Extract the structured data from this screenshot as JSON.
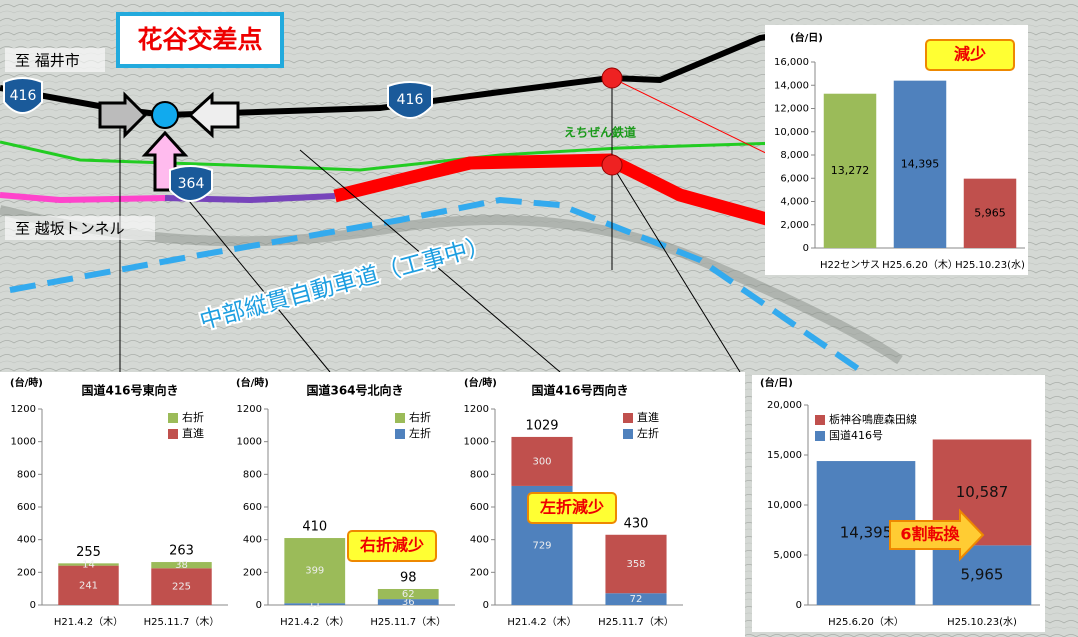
{
  "map": {
    "title": "花谷交差点",
    "to_fukui": "至 福井市",
    "to_tunnel": "至 越坂トンネル",
    "route_416_west": "416",
    "route_416_east": "416",
    "route_364": "364",
    "railway": "えちぜん鉄道",
    "expressway": "中部縦貫自動車道（工事中）"
  },
  "chart_data": [
    {
      "type": "bar",
      "unit": "(台/日)",
      "annotation": "減少",
      "categories": [
        "H22センサス",
        "H25.6.20（木）",
        "H25.10.23(水)"
      ],
      "values": [
        13272,
        14395,
        5965
      ],
      "value_labels": [
        "13,272",
        "14,395",
        "5,965"
      ],
      "colors": [
        "#9bbb59",
        "#4f81bd",
        "#c0504d"
      ],
      "ylim": [
        0,
        16000
      ],
      "yticks": [
        0,
        {
          "value": 2000,
          "label": "2,000"
        },
        {
          "value": 4000,
          "label": "4,000"
        },
        {
          "value": 6000,
          "label": "6,000"
        },
        {
          "value": 8000,
          "label": "8,000"
        },
        {
          "value": 10000,
          "label": "10,000"
        },
        {
          "value": 12000,
          "label": "12,000"
        },
        {
          "value": 14000,
          "label": "14,000"
        },
        {
          "value": 16000,
          "label": "16,000"
        }
      ]
    },
    {
      "type": "stacked_bar",
      "title": "国道416号東向き",
      "unit": "(台/時)",
      "categories": [
        "H21.4.2（木）",
        "H25.11.7（木）"
      ],
      "series": [
        {
          "name": "直進",
          "color": "#c0504d",
          "values": [
            241,
            225
          ]
        },
        {
          "name": "右折",
          "color": "#9bbb59",
          "values": [
            14,
            38
          ]
        }
      ],
      "totals": [
        255,
        263
      ],
      "ylim": [
        0,
        1200
      ],
      "yticks": [
        0,
        200,
        400,
        600,
        800,
        1000,
        1200
      ]
    },
    {
      "type": "stacked_bar",
      "title": "国道364号北向き",
      "unit": "(台/時)",
      "annotation": "右折減少",
      "categories": [
        "H21.4.2（木）",
        "H25.11.7（木）"
      ],
      "series": [
        {
          "name": "左折",
          "color": "#4f81bd",
          "values": [
            11,
            36
          ]
        },
        {
          "name": "右折",
          "color": "#9bbb59",
          "values": [
            399,
            62
          ]
        }
      ],
      "totals": [
        410,
        98
      ],
      "ylim": [
        0,
        1200
      ],
      "yticks": [
        0,
        200,
        400,
        600,
        800,
        1000,
        1200
      ]
    },
    {
      "type": "stacked_bar",
      "title": "国道416号西向き",
      "unit": "(台/時)",
      "annotation": "左折減少",
      "categories": [
        "H21.4.2（木）",
        "H25.11.7（木）"
      ],
      "series": [
        {
          "name": "左折",
          "color": "#4f81bd",
          "values": [
            729,
            72
          ]
        },
        {
          "name": "直進",
          "color": "#c0504d",
          "values": [
            300,
            358
          ]
        }
      ],
      "totals": [
        1029,
        430
      ],
      "ylim": [
        0,
        1200
      ],
      "yticks": [
        0,
        200,
        400,
        600,
        800,
        1000,
        1200
      ]
    },
    {
      "type": "stacked_bar",
      "unit": "(台/日)",
      "annotation": "6割転換",
      "categories": [
        "H25.6.20（木）",
        "H25.10.23(水)"
      ],
      "series": [
        {
          "name": "国道416号",
          "color": "#4f81bd",
          "values": [
            14395,
            5965
          ],
          "value_labels": [
            "14,395",
            "5,965"
          ]
        },
        {
          "name": "栃神谷鳴鹿森田線",
          "color": "#c0504d",
          "values": [
            null,
            10587
          ],
          "value_labels": [
            null,
            "10,587"
          ]
        }
      ],
      "ylim": [
        0,
        20000
      ],
      "yticks": [
        0,
        {
          "value": 5000,
          "label": "5,000"
        },
        {
          "value": 10000,
          "label": "10,000"
        },
        {
          "value": 15000,
          "label": "15,000"
        },
        {
          "value": 20000,
          "label": "20,000"
        }
      ]
    }
  ]
}
